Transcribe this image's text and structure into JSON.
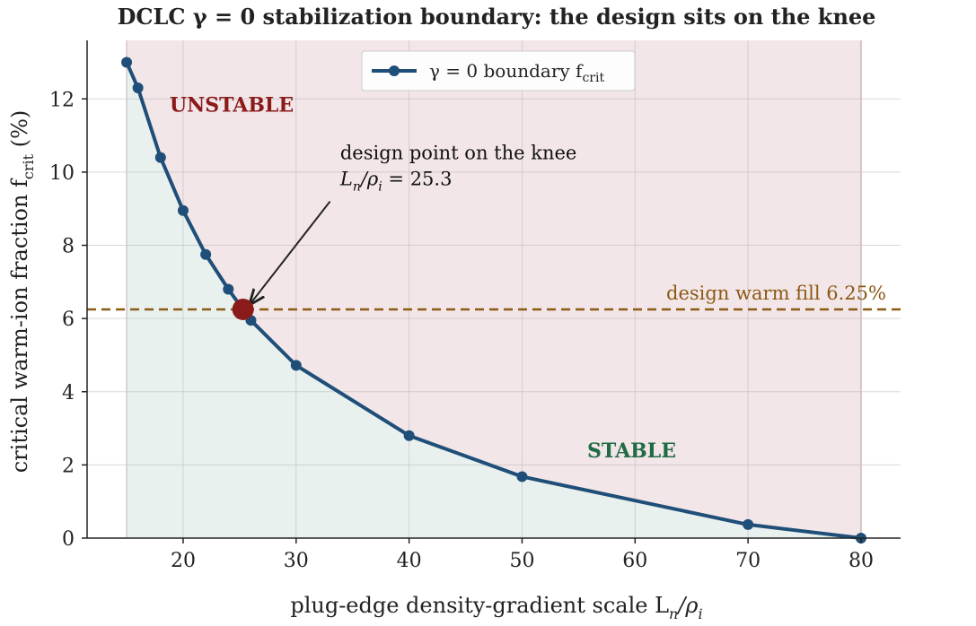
{
  "chart_data": {
    "type": "line",
    "title": "DCLC γ = 0 stabilization boundary: the design sits on the knee",
    "xlabel": "plug-edge density-gradient scale L",
    "xlabel_sub": "n",
    "xlabel_tail": "/ρ",
    "xlabel_tail_sub": "i",
    "ylabel": "critical warm-ion fraction f",
    "ylabel_sub": "crit",
    "ylabel_tail": " (%)",
    "xlim": [
      11.5,
      83.5
    ],
    "ylim": [
      0,
      13.6
    ],
    "xticks": [
      20,
      30,
      40,
      50,
      60,
      70,
      80
    ],
    "yticks": [
      0,
      2,
      4,
      6,
      8,
      10,
      12
    ],
    "grid": true,
    "legend_position": "top-center",
    "series": [
      {
        "name": "γ = 0 boundary f",
        "name_sub": "crit",
        "color": "#1f4e79",
        "x": [
          15,
          16,
          18,
          20,
          22,
          24,
          26,
          30,
          40,
          50,
          70,
          80
        ],
        "y": [
          13.0,
          12.3,
          10.4,
          8.95,
          7.75,
          6.8,
          5.95,
          4.72,
          2.8,
          1.68,
          0.37,
          0.0
        ]
      }
    ],
    "region_x_range": [
      15,
      80
    ],
    "regions": {
      "unstable": {
        "label": "UNSTABLE",
        "color": "#8b1a1a",
        "fill": "#f3e6e8",
        "label_x": 24.3,
        "label_y": 11.65
      },
      "stable": {
        "label": "STABLE",
        "color": "#1e6b44",
        "fill": "#e9f1ee",
        "label_x": 59.7,
        "label_y": 2.2
      }
    },
    "reference_line": {
      "y": 6.25,
      "label": "design warm fill 6.25%",
      "color": "#8b5a14"
    },
    "design_point": {
      "x": 25.3,
      "y": 6.25,
      "color": "#8b1a1a",
      "label": "design point on the knee",
      "sublabel": "L",
      "sublabel_sub1": "n",
      "sublabel_mid": "/ρ",
      "sublabel_sub2": "i",
      "sublabel_value": " = 25.3",
      "text_x": 33.9,
      "text_y": 10.35,
      "arrow_from": [
        33.0,
        9.2
      ]
    }
  }
}
